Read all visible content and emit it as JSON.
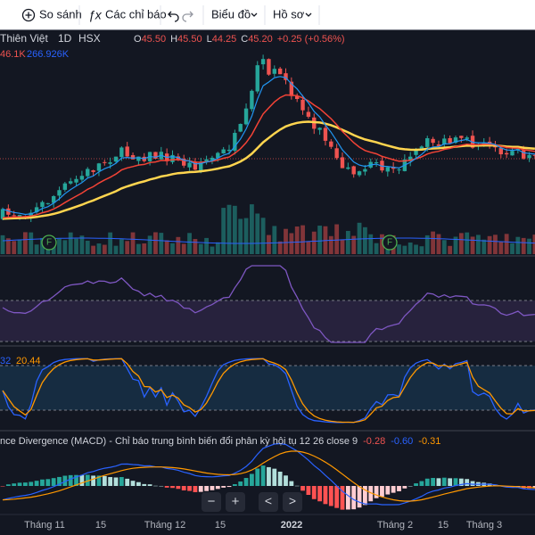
{
  "toolbar": {
    "compare": "So sánh",
    "indicators": "Các chỉ báo",
    "chart": "Biểu đồ",
    "profile": "Hồ sơ"
  },
  "legend": {
    "symbol": "Thiên Việt",
    "interval": "1D",
    "exchange": "HSX",
    "ohlc": [
      [
        "O",
        "45.50"
      ],
      [
        "H",
        "45.50"
      ],
      [
        "L",
        "44.25"
      ],
      [
        "C",
        "45.20"
      ]
    ],
    "change": "+0.25 (+0.56%)",
    "volume": "46.1K",
    "volume_ma": "266.926K"
  },
  "markers": [
    "F",
    "F"
  ],
  "stoch": {
    "k": "32",
    "d": "20.44"
  },
  "macd": {
    "title": "nce Divergence (MACD) - Chỉ báo trung bình biến đổi phân kỳ hội tụ 12 26 close 9",
    "values": [
      "-0.28",
      "-0.60",
      "-0.31"
    ]
  },
  "nav": [
    "−",
    "+",
    "<",
    ">"
  ],
  "time_axis": [
    "Tháng 11",
    "15",
    "Tháng 12",
    "15",
    "2022",
    "Tháng 2",
    "15",
    "Tháng 3"
  ]
}
